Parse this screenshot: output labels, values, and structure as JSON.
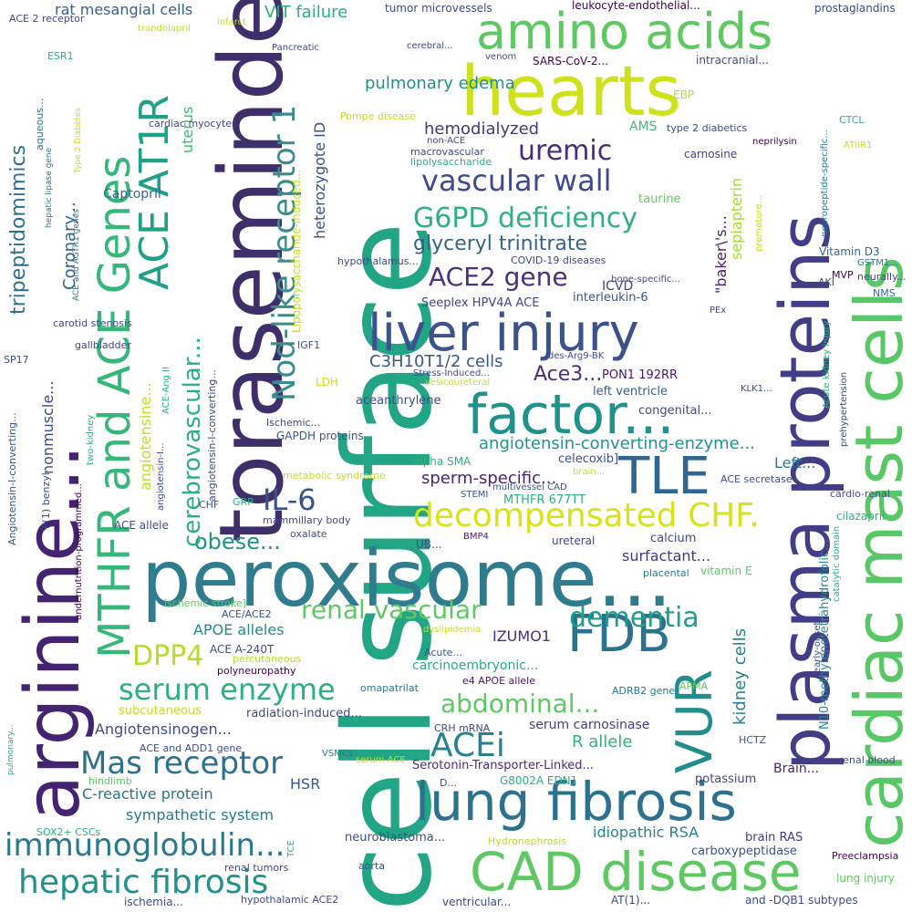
{
  "words": [
    {
      "text": "cell surface",
      "color": "#21a585"
    },
    {
      "text": "toraseminde",
      "color": "#3e2e6a"
    },
    {
      "text": "peroxisome...",
      "color": "#2e7c8e"
    },
    {
      "text": "arginine...",
      "color": "#452373"
    },
    {
      "text": "plasma proteins",
      "color": "#423d87"
    },
    {
      "text": "cardiac mast cells",
      "color": "#58c766"
    },
    {
      "text": "hearts",
      "color": "#cde11d"
    },
    {
      "text": "amino acids",
      "color": "#5ec962"
    },
    {
      "text": "factor...",
      "color": "#20928c"
    },
    {
      "text": "liver injury",
      "color": "#3b528b"
    },
    {
      "text": "lung fibrosis",
      "color": "#2c728e"
    },
    {
      "text": "CAD disease",
      "color": "#5ec962"
    },
    {
      "text": "TLE",
      "color": "#31678e"
    },
    {
      "text": "FDB",
      "color": "#2c718e"
    },
    {
      "text": "VUR",
      "color": "#228d8d"
    },
    {
      "text": "MTHFR and ACE Genes",
      "color": "#35b779"
    },
    {
      "text": "ACE AT1R",
      "color": "#1fa188"
    },
    {
      "text": "Nod-like receptor 1",
      "color": "#3b8c8c"
    },
    {
      "text": "decompensated CHF.",
      "color": "#d8e219"
    },
    {
      "text": "hepatic fibrosis",
      "color": "#21918c"
    },
    {
      "text": "immunoglobulin...",
      "color": "#29798e"
    },
    {
      "text": "Mas receptor",
      "color": "#2c728e"
    },
    {
      "text": "ACEi",
      "color": "#26828e"
    },
    {
      "text": "serum enzyme",
      "color": "#2cb17e"
    },
    {
      "text": "DPP4",
      "color": "#b5de2b"
    },
    {
      "text": "IL-6",
      "color": "#3a538b"
    },
    {
      "text": "obese...",
      "color": "#21918c"
    },
    {
      "text": "renal vascular",
      "color": "#5ec962"
    },
    {
      "text": "dementia",
      "color": "#1f9e89"
    },
    {
      "text": "abdominal...",
      "color": "#5ec962"
    },
    {
      "text": "vascular wall",
      "color": "#3e4a89"
    },
    {
      "text": "uremic",
      "color": "#472c7a"
    },
    {
      "text": "G6PD deficiency",
      "color": "#2db27d"
    },
    {
      "text": "glyceryl trinitrate",
      "color": "#33638d"
    },
    {
      "text": "ACE2 gene",
      "color": "#46327e"
    },
    {
      "text": "tripeptidomimics",
      "color": "#2d708e"
    },
    {
      "text": "cerebrovascular...",
      "color": "#2ab07f"
    },
    {
      "text": "angiotensin-converting-enzyme...",
      "color": "#20938c"
    },
    {
      "text": "kidney cells",
      "color": "#277f8e"
    },
    {
      "text": "sperm-specific...",
      "color": "#482475"
    },
    {
      "text": "C3H10T1/2 cells",
      "color": "#39568c"
    },
    {
      "text": "Ace3...",
      "color": "#472f7d"
    },
    {
      "text": "hemodialyzed",
      "color": "#453882"
    },
    {
      "text": "pulmonary edema",
      "color": "#218e8d"
    },
    {
      "text": "VIT failure",
      "color": "#2ab07f"
    },
    {
      "text": "heterozygote ID",
      "color": "#3d4e8a"
    },
    {
      "text": "rat mesangial cells",
      "color": "#355f8d"
    },
    {
      "text": "Coronary...",
      "color": "#32648e"
    },
    {
      "text": "sympathetic system",
      "color": "#29798e"
    },
    {
      "text": "C-reactive protein",
      "color": "#2c728e"
    },
    {
      "text": "Angiotensinogen...",
      "color": "#3e4c8a"
    },
    {
      "text": "APOE alleles",
      "color": "#238a8d"
    },
    {
      "text": "surfactant...",
      "color": "#453882"
    },
    {
      "text": "Left...",
      "color": "#2a788e"
    },
    {
      "text": "carcinoembryonic...",
      "color": "#27ad81"
    },
    {
      "text": "idiopathic RSA",
      "color": "#26828e"
    },
    {
      "text": "serum carnosinase",
      "color": "#433e85"
    },
    {
      "text": "R allele",
      "color": "#2fb47c"
    },
    {
      "text": "IZUMO1",
      "color": "#46317e"
    },
    {
      "text": "HSR",
      "color": "#3a548c"
    },
    {
      "text": "nonmuscle...",
      "color": "#3f4889"
    },
    {
      "text": "uterus",
      "color": "#3bbb75"
    },
    {
      "text": "Captopril",
      "color": "#31688e"
    },
    {
      "text": "angiotensine...",
      "color": "#bddf26"
    },
    {
      "text": "sepiapterin",
      "color": "#a5db36"
    },
    {
      "text": "\"baker\\'s...",
      "color": "#481f70"
    },
    {
      "text": "ICVD",
      "color": "#404588"
    },
    {
      "text": "Seeplex HPV4A ACE",
      "color": "#3e4a89"
    },
    {
      "text": "interleukin-6",
      "color": "#3b528b"
    },
    {
      "text": "PON1 192RR",
      "color": "#481769"
    },
    {
      "text": "left ventricle",
      "color": "#355e8d"
    },
    {
      "text": "congenital...",
      "color": "#3e4c8a"
    },
    {
      "text": "celecoxib]",
      "color": "#3b528b"
    },
    {
      "text": "MTHFR 677TT",
      "color": "#2db27d"
    },
    {
      "text": "calcium",
      "color": "#3e4989"
    },
    {
      "text": "potassium",
      "color": "#404688"
    },
    {
      "text": "carboxypeptidase",
      "color": "#39558c"
    },
    {
      "text": "brain RAS",
      "color": "#443983"
    },
    {
      "text": "Brain...",
      "color": "#482475"
    },
    {
      "text": "N10-methylenetetrahydrofolic...",
      "color": "#238a8d"
    },
    {
      "text": "Serotonin-Transporter-Linked...",
      "color": "#472d7b"
    },
    {
      "text": "neuroblastoma...",
      "color": "#3d4e8a"
    },
    {
      "text": "AMS",
      "color": "#3fbc73"
    },
    {
      "text": "taurine",
      "color": "#63cb5f"
    },
    {
      "text": "EBP",
      "color": "#b5de2b"
    },
    {
      "text": "carnosine",
      "color": "#433e85"
    },
    {
      "text": "Vitamin D3",
      "color": "#31678e"
    },
    {
      "text": "NMS",
      "color": "#2e6f8e"
    },
    {
      "text": "LDH",
      "color": "#d0e11c"
    },
    {
      "text": "GAPDH proteins",
      "color": "#39568c"
    },
    {
      "text": "IGF1",
      "color": "#3b528b"
    },
    {
      "text": "aceanthrylene",
      "color": "#3e4a89"
    },
    {
      "text": "alpha SMA",
      "color": "#2db27d"
    },
    {
      "text": "Angiotensin-I-converting...",
      "color": "#3b528b"
    },
    {
      "text": "ACE secretase",
      "color": "#3d4d8a"
    },
    {
      "text": "cilazapril",
      "color": "#2db27d"
    },
    {
      "text": "cardio-renal",
      "color": "#3e4c8a"
    },
    {
      "text": "vitamin E",
      "color": "#5ec962"
    },
    {
      "text": "placental",
      "color": "#26828e"
    },
    {
      "text": "ureteral",
      "color": "#3e4c8a"
    },
    {
      "text": "UB...",
      "color": "#3e4c8a"
    },
    {
      "text": "BMP4",
      "color": "#481c6e"
    },
    {
      "text": "oxalate",
      "color": "#3b528b"
    },
    {
      "text": "mammillary body",
      "color": "#3e4a89"
    },
    {
      "text": "GRP",
      "color": "#2db27d"
    },
    {
      "text": "CHF",
      "color": "#3b528b"
    },
    {
      "text": "ACE allele",
      "color": "#3e4c8a"
    },
    {
      "text": "ACE A-240T",
      "color": "#3e4c8a"
    },
    {
      "text": "polyneuropathy",
      "color": "#440154"
    },
    {
      "text": "ACE/ACE2",
      "color": "#3b528b"
    },
    {
      "text": "ischemic stroke]",
      "color": "#5ec962"
    },
    {
      "text": "subcutaneous",
      "color": "#c2df23"
    },
    {
      "text": "percutaneous",
      "color": "#b5de2b"
    },
    {
      "text": "radiation-induced...",
      "color": "#3e4a89"
    },
    {
      "text": "omapatrilat",
      "color": "#2a788e"
    },
    {
      "text": "e4 APOE allele",
      "color": "#481668"
    },
    {
      "text": "APMA",
      "color": "#63cb5f"
    },
    {
      "text": "ADRB2 gene",
      "color": "#2a788e"
    },
    {
      "text": "dyslipidemia",
      "color": "#c5e021"
    },
    {
      "text": "Acute...",
      "color": "#3b528b"
    },
    {
      "text": "HCTZ",
      "color": "#3b528b"
    },
    {
      "text": "renal blood",
      "color": "#3b528b"
    },
    {
      "text": "CRH mRNA",
      "color": "#3e4a89"
    },
    {
      "text": "ACE and ADD1 gene",
      "color": "#3e4a89"
    },
    {
      "text": "VSMCs",
      "color": "#2a788e"
    },
    {
      "text": "serum ACE",
      "color": "#c2df23"
    },
    {
      "text": "hindlimb",
      "color": "#5ec962"
    },
    {
      "text": "SOX2+ CSCs",
      "color": "#2db27d"
    },
    {
      "text": "TCE",
      "color": "#2db27d"
    },
    {
      "text": "D...",
      "color": "#3b528b"
    },
    {
      "text": "G8002A EDN1",
      "color": "#2db27d"
    },
    {
      "text": "Hydronephrosis",
      "color": "#b5de2b"
    },
    {
      "text": "renal tumors",
      "color": "#3e4a89"
    },
    {
      "text": "aorta",
      "color": "#3b528b"
    },
    {
      "text": "ischemia...",
      "color": "#3e4a89"
    },
    {
      "text": "hypothalamic ACE2",
      "color": "#3e4a89"
    },
    {
      "text": "ventricular...",
      "color": "#3e4a89"
    },
    {
      "text": "AT(1)...",
      "color": "#3e4a89"
    },
    {
      "text": "and -DQB1 subtypes",
      "color": "#3e4a89"
    },
    {
      "text": "lung injury",
      "color": "#5ec962"
    },
    {
      "text": "Preeclampsia",
      "color": "#440154"
    },
    {
      "text": "STEMI",
      "color": "#3b528b"
    },
    {
      "text": "multivessel CAD",
      "color": "#3b528b"
    },
    {
      "text": "brain...",
      "color": "#c2df23"
    },
    {
      "text": "metabolic syndrome",
      "color": "#c2df23"
    },
    {
      "text": "Ischemic...",
      "color": "#3e4a89"
    },
    {
      "text": "two-kidney",
      "color": "#2db27d"
    },
    {
      "text": "P(1) benzyl",
      "color": "#3e4a89"
    },
    {
      "text": "SP17",
      "color": "#3e4a89"
    },
    {
      "text": "carotid stenosis",
      "color": "#3e4a89"
    },
    {
      "text": "gallbladder",
      "color": "#3e4a89"
    },
    {
      "text": "angiotensin-I...",
      "color": "#3e4a89"
    },
    {
      "text": "ACE-Ang II",
      "color": "#2db27d"
    },
    {
      "text": "angiotensin-I-converting...",
      "color": "#3e4a89"
    },
    {
      "text": "Lipopolysaccharide-Induced...",
      "color": "#c2df23"
    },
    {
      "text": "hypothalamus...",
      "color": "#3e4a89"
    },
    {
      "text": "COVID-19 diseases",
      "color": "#3e4a89"
    },
    {
      "text": "bone-specific...",
      "color": "#3e4a89"
    },
    {
      "text": "PEx",
      "color": "#3e4a89"
    },
    {
      "text": "des-Arg9-BK",
      "color": "#3e4a89"
    },
    {
      "text": "Stress-Induced...",
      "color": "#3e4a89"
    },
    {
      "text": "vesicoureteral",
      "color": "#c2df23"
    },
    {
      "text": "KLK1...",
      "color": "#3e4a89"
    },
    {
      "text": "non-ACE",
      "color": "#3e4a89"
    },
    {
      "text": "macrovascular",
      "color": "#3e4a89"
    },
    {
      "text": "lipolysaccharide",
      "color": "#2db27d"
    },
    {
      "text": "Pompe disease",
      "color": "#c2df23"
    },
    {
      "text": "cardiac myocytes",
      "color": "#3e4a89"
    },
    {
      "text": "hepatic lipase gene",
      "color": "#2a788e"
    },
    {
      "text": "ACE and AGTR1 genes",
      "color": "#2a788e"
    },
    {
      "text": "Type 2 Diabetes",
      "color": "#c2df23"
    },
    {
      "text": "aqueous...",
      "color": "#2a788e"
    },
    {
      "text": "ESR1",
      "color": "#2db27d"
    },
    {
      "text": "ACE 2 receptor",
      "color": "#3e4a89"
    },
    {
      "text": "infarct",
      "color": "#c2df23"
    },
    {
      "text": "trandolapril",
      "color": "#c2df23"
    },
    {
      "text": "Pancreatic",
      "color": "#3e4a89"
    },
    {
      "text": "tumor microvessels",
      "color": "#3e4a89"
    },
    {
      "text": "leukocyte-endothelial...",
      "color": "#440154"
    },
    {
      "text": "prostaglandins",
      "color": "#3e4a89"
    },
    {
      "text": "cerebral...",
      "color": "#3e4a89"
    },
    {
      "text": "venom",
      "color": "#3e4a89"
    },
    {
      "text": "SARS-CoV-2...",
      "color": "#440154"
    },
    {
      "text": "intracranial...",
      "color": "#3e4a89"
    },
    {
      "text": "type 2 diabetics",
      "color": "#3e4a89"
    },
    {
      "text": "CTCL",
      "color": "#2db27d"
    },
    {
      "text": "neprilysin",
      "color": "#440154"
    },
    {
      "text": "ATIIR1",
      "color": "#c2df23"
    },
    {
      "text": "neuropeptide-specific...",
      "color": "#2a788e"
    },
    {
      "text": "premature...",
      "color": "#c2df23"
    },
    {
      "text": "GSTM1...",
      "color": "#2a788e"
    },
    {
      "text": "AKI",
      "color": "#3e4a89"
    },
    {
      "text": "MVP",
      "color": "#440154"
    },
    {
      "text": "neurally...",
      "color": "#3e4a89"
    },
    {
      "text": "Acute kidney injury",
      "color": "#2db27d"
    },
    {
      "text": "prehypertension",
      "color": "#3e4a89"
    },
    {
      "text": "early-onset...",
      "color": "#3e4a89"
    },
    {
      "text": "catalytic domain",
      "color": "#2db27d"
    },
    {
      "text": "pulmonary...",
      "color": "#2db27d"
    },
    {
      "text": "undernutrition-programmed...",
      "color": "#440154"
    }
  ]
}
